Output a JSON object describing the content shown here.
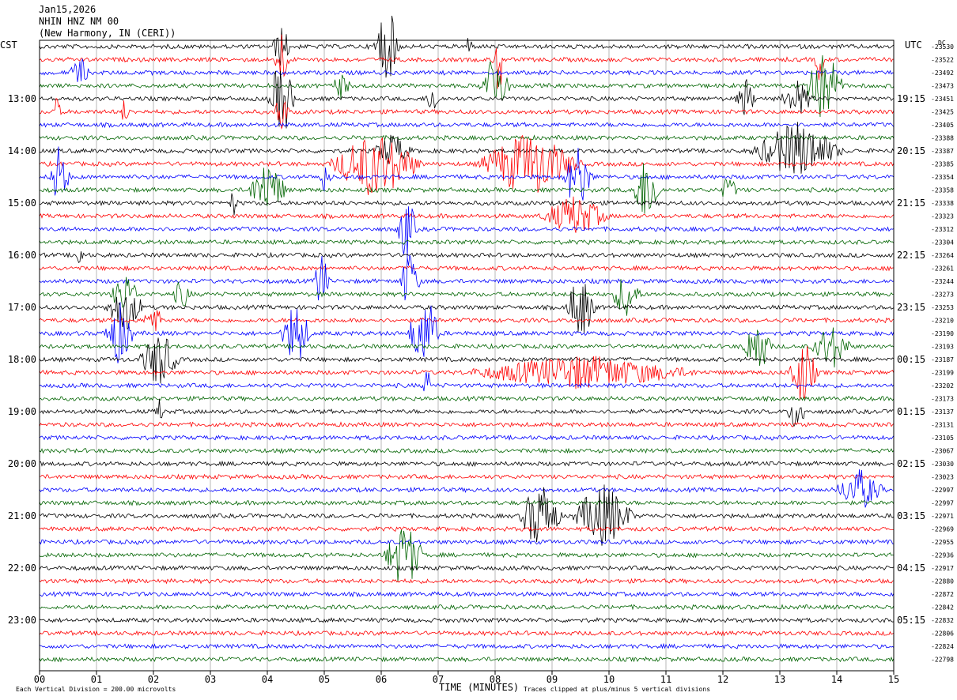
{
  "header": {
    "date": "Jan15,2026",
    "station": "NHIN HNZ NM 00",
    "location": "(New Harmony, IN (CERI))"
  },
  "left_zone": "CST",
  "right_zone": "UTC",
  "dc_label": "DC",
  "footer": {
    "scale_note": "Each Vertical Division =  200.00 microvolts",
    "clip_note": "Traces clipped at plus/minus 5 vertical divisions"
  },
  "chart_data": {
    "type": "line",
    "title": "",
    "xlabel": "TIME (MINUTES)",
    "xlim": [
      0,
      15
    ],
    "x_tick_labels": [
      "00",
      "01",
      "02",
      "03",
      "04",
      "05",
      "06",
      "07",
      "08",
      "09",
      "10",
      "11",
      "12",
      "13",
      "14",
      "15"
    ],
    "left_hour_labels": [
      "13:00",
      "14:00",
      "15:00",
      "16:00",
      "17:00",
      "18:00",
      "19:00",
      "20:00",
      "21:00",
      "22:00",
      "23:00"
    ],
    "right_hour_labels": [
      "19:15",
      "20:15",
      "21:15",
      "22:15",
      "23:15",
      "00:15",
      "01:15",
      "02:15",
      "03:15",
      "04:15",
      "05:15"
    ],
    "trace_colors": [
      "#000000",
      "#ff0000",
      "#0000ff",
      "#006400"
    ],
    "dc_offsets": [
      "-23530",
      "-23522",
      "-23492",
      "-23473",
      "-23451",
      "-23425",
      "-23405",
      "-23388",
      "-23387",
      "-23385",
      "-23354",
      "-23358",
      "-23338",
      "-23323",
      "-23312",
      "-23304",
      "-23264",
      "-23261",
      "-23244",
      "-23273",
      "-23253",
      "-23210",
      "-23190",
      "-23193",
      "-23187",
      "-23199",
      "-23202",
      "-23173",
      "-23137",
      "-23131",
      "-23105",
      "-23067",
      "-23030",
      "-23023",
      "-22997",
      "-22997",
      "-22971",
      "-22969",
      "-22955",
      "-22936",
      "-22917",
      "-22880",
      "-22872",
      "-22842",
      "-22832",
      "-22806",
      "-22824",
      "-22798"
    ],
    "events": [
      {
        "trace": 0,
        "minute": 6.1,
        "amp": 5,
        "len": 0.25
      },
      {
        "trace": 0,
        "minute": 7.55,
        "amp": 2.5,
        "len": 0.05
      },
      {
        "trace": 0,
        "minute": 4.25,
        "amp": 1.8,
        "len": 0.2
      },
      {
        "trace": 1,
        "minute": 8.05,
        "amp": 5,
        "len": 0.1
      },
      {
        "trace": 1,
        "minute": 4.25,
        "amp": 2.5,
        "len": 0.15
      },
      {
        "trace": 1,
        "minute": 13.7,
        "amp": 2,
        "len": 0.1
      },
      {
        "trace": 2,
        "minute": 0.7,
        "amp": 1.5,
        "len": 0.2
      },
      {
        "trace": 3,
        "minute": 8.0,
        "amp": 3,
        "len": 0.3
      },
      {
        "trace": 3,
        "minute": 13.75,
        "amp": 4,
        "len": 0.4
      },
      {
        "trace": 3,
        "minute": 5.3,
        "amp": 1.2,
        "len": 0.2
      },
      {
        "trace": 4,
        "minute": 4.25,
        "amp": 4,
        "len": 0.25
      },
      {
        "trace": 4,
        "minute": 6.9,
        "amp": 1.5,
        "len": 0.15
      },
      {
        "trace": 4,
        "minute": 12.4,
        "amp": 1.8,
        "len": 0.2
      },
      {
        "trace": 4,
        "minute": 13.3,
        "amp": 1.6,
        "len": 0.35
      },
      {
        "trace": 5,
        "minute": 0.3,
        "amp": 1.3,
        "len": 0.1
      },
      {
        "trace": 5,
        "minute": 1.5,
        "amp": 1.2,
        "len": 0.1
      },
      {
        "trace": 5,
        "minute": 4.25,
        "amp": 2,
        "len": 0.15
      },
      {
        "trace": 8,
        "minute": 13.3,
        "amp": 2.5,
        "len": 0.9
      },
      {
        "trace": 8,
        "minute": 6.2,
        "amp": 1.5,
        "len": 0.4
      },
      {
        "trace": 9,
        "minute": 5.9,
        "amp": 3,
        "len": 0.9
      },
      {
        "trace": 9,
        "minute": 8.6,
        "amp": 3,
        "len": 1.0
      },
      {
        "trace": 10,
        "minute": 0.35,
        "amp": 3,
        "len": 0.2
      },
      {
        "trace": 10,
        "minute": 9.45,
        "amp": 3,
        "len": 0.3
      },
      {
        "trace": 10,
        "minute": 5.0,
        "amp": 1.2,
        "len": 0.15
      },
      {
        "trace": 11,
        "minute": 4.0,
        "amp": 2.5,
        "len": 0.4
      },
      {
        "trace": 11,
        "minute": 10.65,
        "amp": 3,
        "len": 0.3
      },
      {
        "trace": 11,
        "minute": 12.1,
        "amp": 1.2,
        "len": 0.2
      },
      {
        "trace": 12,
        "minute": 3.4,
        "amp": 1.2,
        "len": 0.1
      },
      {
        "trace": 13,
        "minute": 9.4,
        "amp": 1.8,
        "len": 0.7
      },
      {
        "trace": 14,
        "minute": 6.45,
        "amp": 3,
        "len": 0.2
      },
      {
        "trace": 16,
        "minute": 0.7,
        "amp": 1.2,
        "len": 0.1
      },
      {
        "trace": 18,
        "minute": 4.95,
        "amp": 3,
        "len": 0.15
      },
      {
        "trace": 18,
        "minute": 6.5,
        "amp": 3,
        "len": 0.2
      },
      {
        "trace": 19,
        "minute": 1.5,
        "amp": 1.8,
        "len": 0.3
      },
      {
        "trace": 19,
        "minute": 2.5,
        "amp": 1.4,
        "len": 0.2
      },
      {
        "trace": 19,
        "minute": 10.3,
        "amp": 2,
        "len": 0.3
      },
      {
        "trace": 20,
        "minute": 1.5,
        "amp": 2,
        "len": 0.4
      },
      {
        "trace": 20,
        "minute": 9.5,
        "amp": 3,
        "len": 0.3
      },
      {
        "trace": 21,
        "minute": 2.0,
        "amp": 1.5,
        "len": 0.2
      },
      {
        "trace": 22,
        "minute": 1.4,
        "amp": 3,
        "len": 0.3
      },
      {
        "trace": 22,
        "minute": 4.5,
        "amp": 3,
        "len": 0.3
      },
      {
        "trace": 22,
        "minute": 6.75,
        "amp": 4,
        "len": 0.3
      },
      {
        "trace": 23,
        "minute": 12.6,
        "amp": 2.5,
        "len": 0.3
      },
      {
        "trace": 23,
        "minute": 13.9,
        "amp": 2,
        "len": 0.4
      },
      {
        "trace": 24,
        "minute": 2.1,
        "amp": 2.5,
        "len": 0.4
      },
      {
        "trace": 25,
        "minute": 9.5,
        "amp": 1.5,
        "len": 2.4
      },
      {
        "trace": 25,
        "minute": 13.4,
        "amp": 3,
        "len": 0.3
      },
      {
        "trace": 26,
        "minute": 6.8,
        "amp": 1.8,
        "len": 0.1
      },
      {
        "trace": 28,
        "minute": 2.1,
        "amp": 1.2,
        "len": 0.1
      },
      {
        "trace": 28,
        "minute": 13.3,
        "amp": 1.8,
        "len": 0.2
      },
      {
        "trace": 34,
        "minute": 14.4,
        "amp": 1.8,
        "len": 0.5
      },
      {
        "trace": 36,
        "minute": 8.8,
        "amp": 3.5,
        "len": 0.4
      },
      {
        "trace": 36,
        "minute": 9.9,
        "amp": 3,
        "len": 0.6
      },
      {
        "trace": 39,
        "minute": 6.4,
        "amp": 3,
        "len": 0.4
      }
    ]
  }
}
